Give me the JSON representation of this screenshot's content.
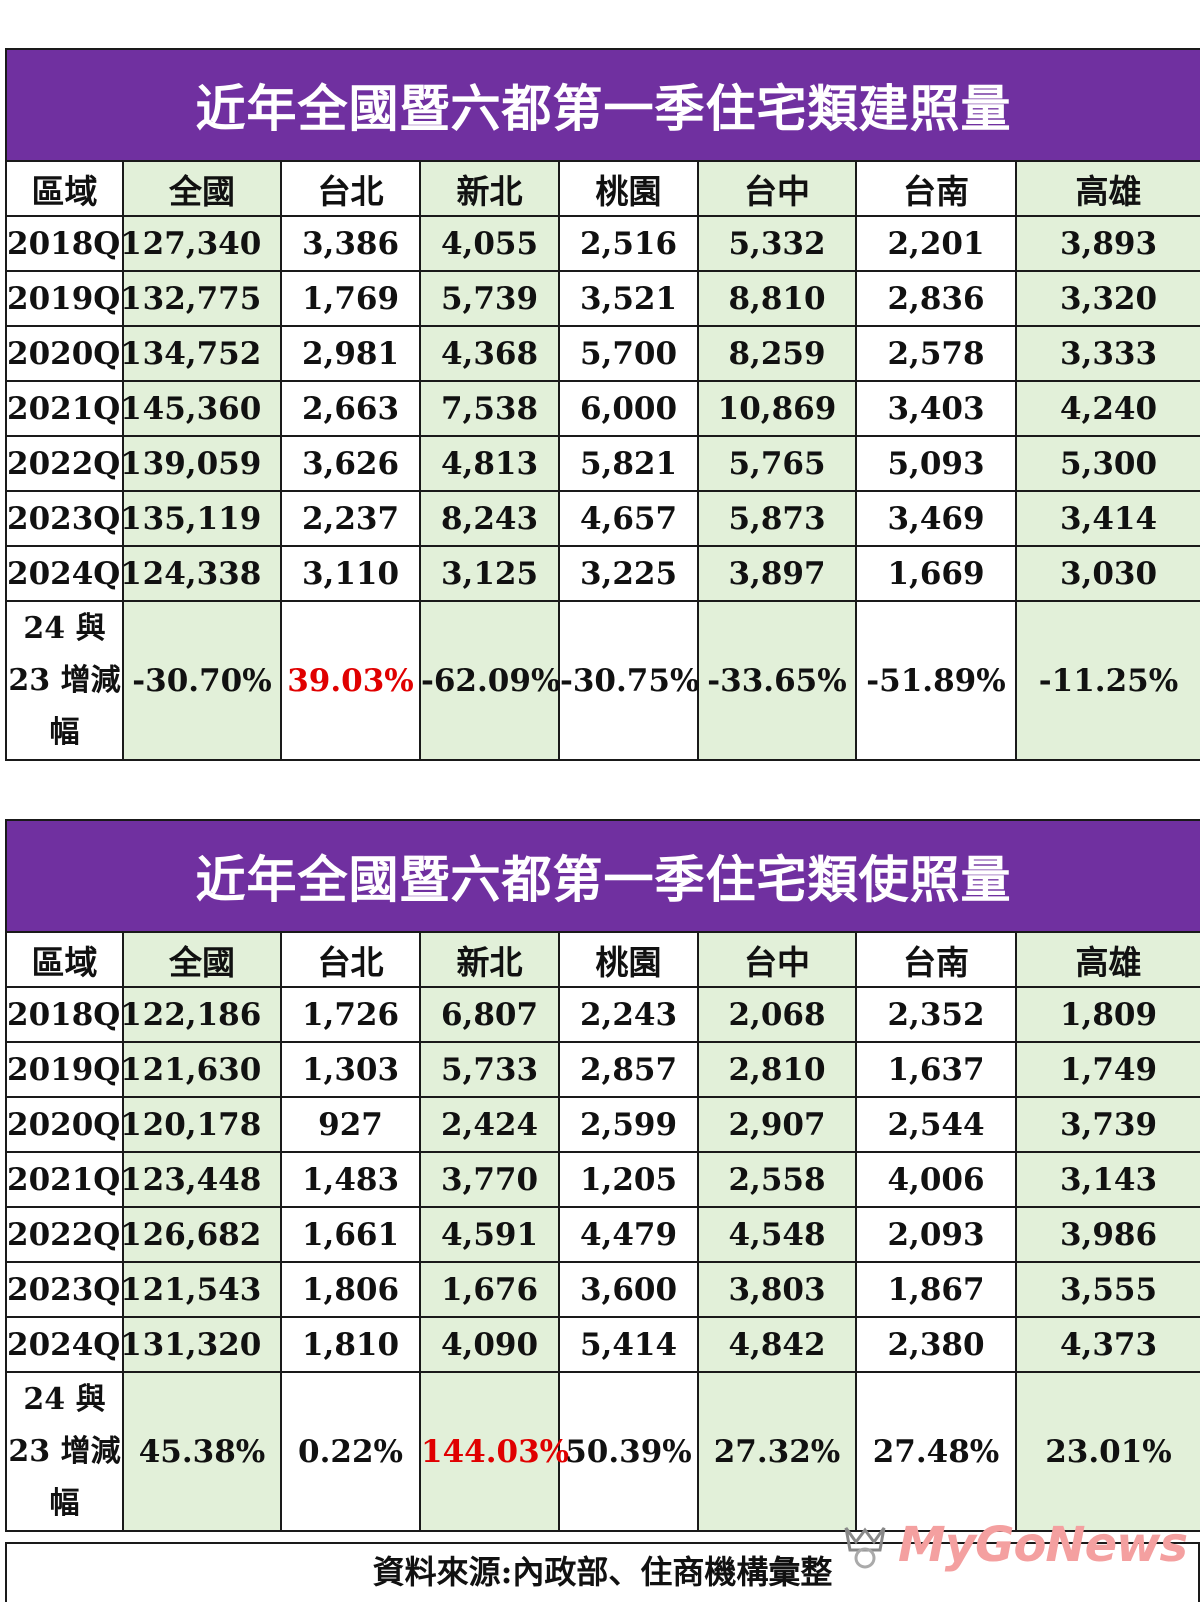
{
  "build_table": {
    "title": "近年全國暨六都第一季住宅類建照量",
    "headers": [
      "區域",
      "全國",
      "台北",
      "新北",
      "桃園",
      "台中",
      "台南",
      "高雄"
    ],
    "rows": [
      [
        "2018Q1",
        "27,340",
        "3,386",
        "4,055",
        "2,516",
        "5,332",
        "2,201",
        "3,893"
      ],
      [
        "2019Q1",
        "32,775",
        "1,769",
        "5,739",
        "3,521",
        "8,810",
        "2,836",
        "3,320"
      ],
      [
        "2020Q1",
        "34,752",
        "2,981",
        "4,368",
        "5,700",
        "8,259",
        "2,578",
        "3,333"
      ],
      [
        "2021Q1",
        "45,360",
        "2,663",
        "7,538",
        "6,000",
        "10,869",
        "3,403",
        "4,240"
      ],
      [
        "2022Q1",
        "39,059",
        "3,626",
        "4,813",
        "5,821",
        "5,765",
        "5,093",
        "5,300"
      ],
      [
        "2023Q1",
        "35,119",
        "2,237",
        "8,243",
        "4,657",
        "5,873",
        "3,469",
        "3,414"
      ],
      [
        "2024Q1",
        "24,338",
        "3,110",
        "3,125",
        "3,225",
        "3,897",
        "1,669",
        "3,030"
      ]
    ],
    "change_label": [
      "24 與",
      "23 增減",
      "幅"
    ],
    "change_values": [
      "-30.70%",
      "39.03%",
      "-62.09%",
      "-30.75%",
      "-33.65%",
      "-51.89%",
      "-11.25%"
    ]
  },
  "use_table": {
    "title": "近年全國暨六都第一季住宅類使照量",
    "headers": [
      "區域",
      "全國",
      "台北",
      "新北",
      "桃園",
      "台中",
      "台南",
      "高雄"
    ],
    "rows": [
      [
        "2018Q1",
        "22,186",
        "1,726",
        "6,807",
        "2,243",
        "2,068",
        "2,352",
        "1,809"
      ],
      [
        "2019Q1",
        "21,630",
        "1,303",
        "5,733",
        "2,857",
        "2,810",
        "1,637",
        "1,749"
      ],
      [
        "2020Q1",
        "20,178",
        "927",
        "2,424",
        "2,599",
        "2,907",
        "2,544",
        "3,739"
      ],
      [
        "2021Q1",
        "23,448",
        "1,483",
        "3,770",
        "1,205",
        "2,558",
        "4,006",
        "3,143"
      ],
      [
        "2022Q1",
        "26,682",
        "1,661",
        "4,591",
        "4,479",
        "4,548",
        "2,093",
        "3,986"
      ],
      [
        "2023Q1",
        "21,543",
        "1,806",
        "1,676",
        "3,600",
        "3,803",
        "1,867",
        "3,555"
      ],
      [
        "2024Q1",
        "31,320",
        "1,810",
        "4,090",
        "5,414",
        "4,842",
        "2,380",
        "4,373"
      ]
    ],
    "change_label": [
      "24 與",
      "23 增減",
      "幅"
    ],
    "change_values": [
      "45.38%",
      "0.22%",
      "144.03%",
      "50.39%",
      "27.32%",
      "27.48%",
      "23.01%"
    ]
  },
  "footer": {
    "source": "資料來源:內政部、住商機構彙整"
  },
  "logo": {
    "text": "MyGoNews"
  },
  "colors": {
    "title_bg": "#7030a0",
    "green_cell": "#e2f0d9",
    "highlight_red": "#e00000"
  }
}
